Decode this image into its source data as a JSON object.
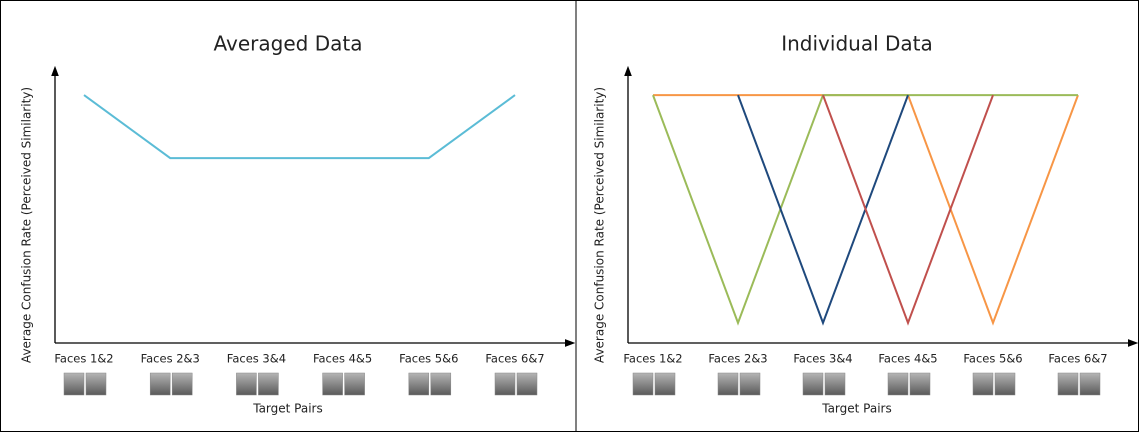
{
  "chart_data": [
    {
      "type": "line",
      "title": "Averaged Data",
      "y_label": "Average Confusion Rate (Perceived Similarity)",
      "x_label": "Target Pairs",
      "categories": [
        "Faces 1&2",
        "Faces 2&3",
        "Faces 3&4",
        "Faces 4&5",
        "Faces 5&6",
        "Faces 6&7"
      ],
      "ylim": [
        0,
        1
      ],
      "series": [
        {
          "color": "#5bbcd6",
          "values": [
            0.925,
            0.69,
            0.69,
            0.69,
            0.69,
            0.925
          ]
        }
      ]
    },
    {
      "type": "line",
      "title": "Individual Data",
      "y_label": "Average Confusion Rate (Perceived Similarity)",
      "x_label": "Target Pairs",
      "categories": [
        "Faces 1&2",
        "Faces 2&3",
        "Faces 3&4",
        "Faces 4&5",
        "Faces 5&6",
        "Faces 6&7"
      ],
      "ylim": [
        0,
        1
      ],
      "series": [
        {
          "color": "#f79646",
          "values": [
            0.925,
            0.925,
            0.925,
            0.925,
            0.075,
            0.925
          ]
        },
        {
          "color": "#9bbb59",
          "values": [
            0.925,
            0.075,
            0.925,
            0.925,
            0.925,
            0.925
          ]
        },
        {
          "color": "#1f497d",
          "values": [
            null,
            0.925,
            0.075,
            0.925,
            null,
            null
          ]
        },
        {
          "color": "#c0504d",
          "values": [
            null,
            null,
            0.925,
            0.075,
            0.925,
            null
          ]
        }
      ]
    }
  ]
}
